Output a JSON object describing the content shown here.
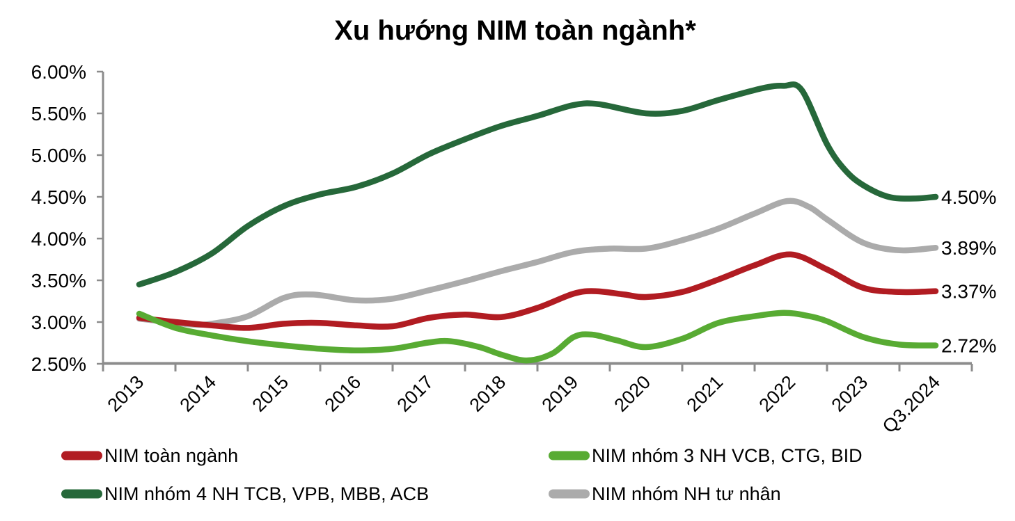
{
  "title": "Xu hướng NIM toàn ngành*",
  "colors": {
    "axis": "#8C8C8C",
    "text": "#000000",
    "background": "#FFFFFF"
  },
  "chart_data": {
    "type": "line",
    "title": "Xu hướng NIM toàn ngành*",
    "xlabel": "",
    "ylabel": "",
    "grid": false,
    "legend_position": "bottom",
    "y_axis": {
      "min": 2.5,
      "max": 6.0,
      "step": 0.5,
      "tick_labels": [
        "6.00%",
        "5.50%",
        "5.00%",
        "4.50%",
        "4.00%",
        "3.50%",
        "3.00%",
        "2.50%"
      ]
    },
    "x_categories": [
      "2013",
      "2014",
      "2015",
      "2016",
      "2017",
      "2018",
      "2019",
      "2020",
      "2021",
      "2022",
      "2023",
      "Q3.2024"
    ],
    "x_note": "series points use fractional x in category-index units (0 = 2013, 11 = Q3.2024), y in percent",
    "series": [
      {
        "key": "nim-toan-nganh",
        "name": "NIM toàn ngành",
        "color": "#B11C22",
        "end_label": "3.37%",
        "points": [
          [
            0,
            3.05
          ],
          [
            0.5,
            3.0
          ],
          [
            1,
            2.96
          ],
          [
            1.5,
            2.93
          ],
          [
            2,
            2.98
          ],
          [
            2.5,
            2.99
          ],
          [
            3,
            2.96
          ],
          [
            3.5,
            2.95
          ],
          [
            4,
            3.05
          ],
          [
            4.5,
            3.09
          ],
          [
            5,
            3.06
          ],
          [
            5.5,
            3.17
          ],
          [
            6,
            3.34
          ],
          [
            6.3,
            3.37
          ],
          [
            6.7,
            3.33
          ],
          [
            7,
            3.3
          ],
          [
            7.5,
            3.36
          ],
          [
            8,
            3.51
          ],
          [
            8.5,
            3.68
          ],
          [
            9,
            3.81
          ],
          [
            9.5,
            3.63
          ],
          [
            10,
            3.41
          ],
          [
            10.5,
            3.36
          ],
          [
            11,
            3.37
          ]
        ]
      },
      {
        "key": "nim-nhom-4-nh",
        "name": "NIM nhóm 4 NH TCB, VPB, MBB, ACB",
        "color": "#26683A",
        "end_label": "4.50%",
        "points": [
          [
            0,
            3.45
          ],
          [
            0.5,
            3.6
          ],
          [
            1,
            3.82
          ],
          [
            1.5,
            4.15
          ],
          [
            2,
            4.39
          ],
          [
            2.5,
            4.53
          ],
          [
            3,
            4.62
          ],
          [
            3.5,
            4.78
          ],
          [
            4,
            5.01
          ],
          [
            4.5,
            5.19
          ],
          [
            5,
            5.35
          ],
          [
            5.5,
            5.47
          ],
          [
            6,
            5.6
          ],
          [
            6.35,
            5.61
          ],
          [
            7,
            5.5
          ],
          [
            7.5,
            5.53
          ],
          [
            8,
            5.66
          ],
          [
            8.6,
            5.8
          ],
          [
            8.9,
            5.83
          ],
          [
            9.15,
            5.78
          ],
          [
            9.5,
            5.13
          ],
          [
            9.75,
            4.82
          ],
          [
            10,
            4.64
          ],
          [
            10.35,
            4.5
          ],
          [
            10.7,
            4.48
          ],
          [
            11,
            4.5
          ]
        ]
      },
      {
        "key": "nim-nhom-3-nh",
        "name": "NIM nhóm 3 NH VCB, CTG, BID",
        "color": "#58AB33",
        "end_label": "2.72%",
        "points": [
          [
            0,
            3.1
          ],
          [
            0.5,
            2.93
          ],
          [
            1,
            2.84
          ],
          [
            1.5,
            2.77
          ],
          [
            2,
            2.72
          ],
          [
            2.5,
            2.68
          ],
          [
            3,
            2.66
          ],
          [
            3.5,
            2.68
          ],
          [
            4,
            2.755
          ],
          [
            4.3,
            2.77
          ],
          [
            4.7,
            2.7
          ],
          [
            5,
            2.61
          ],
          [
            5.35,
            2.54
          ],
          [
            5.7,
            2.62
          ],
          [
            6,
            2.82
          ],
          [
            6.25,
            2.85
          ],
          [
            6.6,
            2.78
          ],
          [
            7,
            2.7
          ],
          [
            7.5,
            2.8
          ],
          [
            8,
            2.99
          ],
          [
            8.5,
            3.07
          ],
          [
            8.9,
            3.11
          ],
          [
            9.2,
            3.08
          ],
          [
            9.5,
            3.01
          ],
          [
            10,
            2.82
          ],
          [
            10.5,
            2.73
          ],
          [
            11,
            2.72
          ]
        ]
      },
      {
        "key": "nim-nh-tu-nhan",
        "name": "NIM nhóm NH tư nhân",
        "color": "#ABABAB",
        "end_label": "3.89%",
        "points": [
          [
            0,
            3.04
          ],
          [
            0.5,
            2.99
          ],
          [
            0.75,
            2.97
          ],
          [
            1,
            2.98
          ],
          [
            1.5,
            3.07
          ],
          [
            2,
            3.29
          ],
          [
            2.4,
            3.33
          ],
          [
            3,
            3.26
          ],
          [
            3.5,
            3.28
          ],
          [
            4,
            3.38
          ],
          [
            4.5,
            3.49
          ],
          [
            5,
            3.61
          ],
          [
            5.5,
            3.72
          ],
          [
            6,
            3.84
          ],
          [
            6.5,
            3.88
          ],
          [
            7,
            3.88
          ],
          [
            7.5,
            3.98
          ],
          [
            8,
            4.12
          ],
          [
            8.5,
            4.3
          ],
          [
            8.95,
            4.45
          ],
          [
            9.25,
            4.38
          ],
          [
            9.5,
            4.23
          ],
          [
            10,
            3.95
          ],
          [
            10.5,
            3.86
          ],
          [
            11,
            3.89
          ]
        ],
        "draw_first": true
      }
    ],
    "legend_order_row_major": [
      "nim-toan-nganh",
      "nim-nhom-3-nh",
      "nim-nhom-4-nh",
      "nim-nh-tu-nhan"
    ]
  }
}
